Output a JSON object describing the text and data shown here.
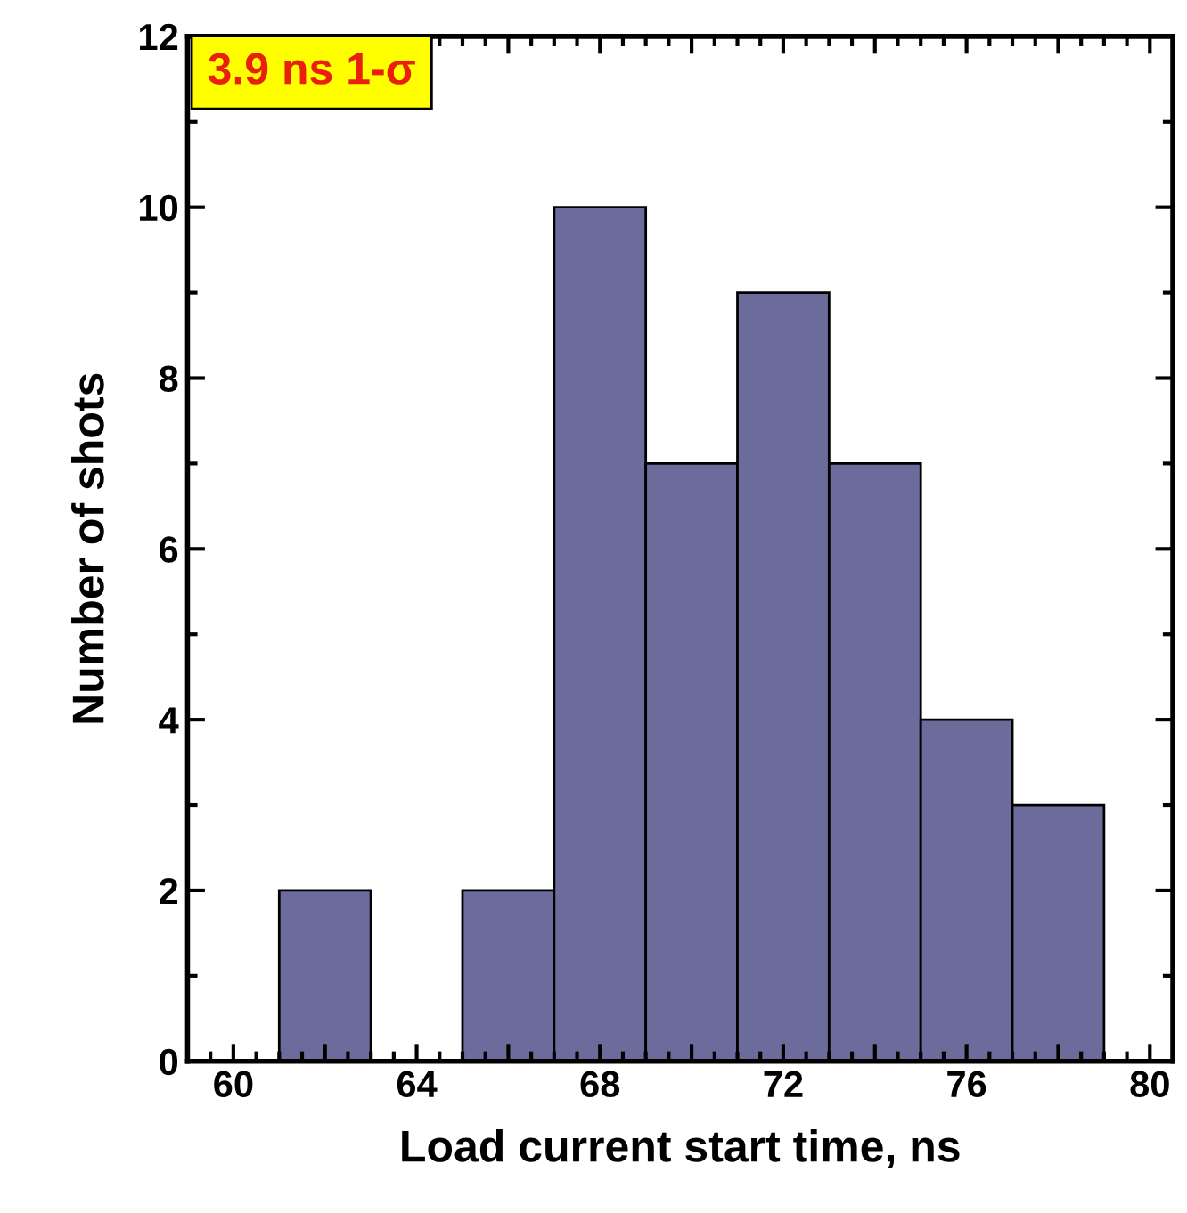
{
  "chart_data": {
    "type": "histogram",
    "xlabel": "Load current start time, ns",
    "ylabel": "Number of shots",
    "bins": [
      61,
      63,
      65,
      67,
      69,
      71,
      73,
      75,
      77,
      79
    ],
    "values": [
      2,
      0,
      2,
      10,
      7,
      9,
      7,
      4,
      3
    ],
    "color": "#6b6b9c",
    "xlim": [
      59,
      80.5
    ],
    "ylim": [
      0,
      12
    ],
    "xticks": [
      60,
      {
        "value": 62,
        "label": null
      },
      64,
      {
        "value": 66,
        "label": null
      },
      68,
      {
        "value": 70,
        "label": null
      },
      72,
      {
        "value": 74,
        "label": null
      },
      76,
      {
        "value": 78,
        "label": null
      },
      80
    ],
    "yticks": [
      0,
      2,
      4,
      6,
      8,
      10,
      12
    ],
    "annotations": [
      "3.9 ns 1-σ"
    ],
    "grid": false,
    "legend": false
  }
}
